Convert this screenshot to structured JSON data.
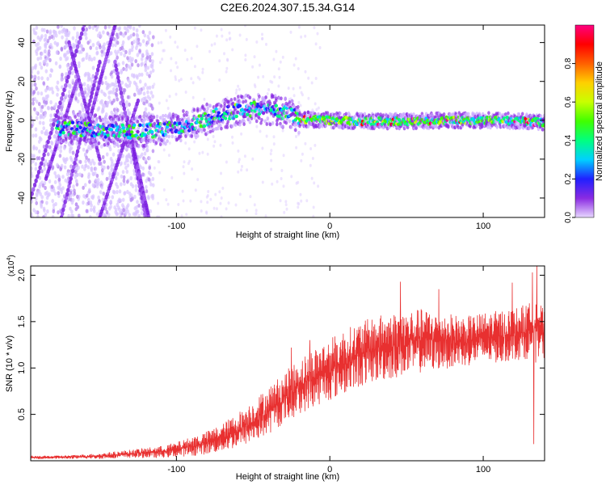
{
  "figure": {
    "title": "C2E6.2024.307.15.34.G14"
  },
  "chart_data": [
    {
      "type": "heatmap",
      "xlabel": "Height of straight line (km)",
      "ylabel": "Frequency (Hz)",
      "xlim": [
        -195,
        140
      ],
      "ylim": [
        -50,
        49
      ],
      "x_ticks": [
        -100,
        0,
        100
      ],
      "x_tick_labels": [
        "-100",
        "0",
        "100"
      ],
      "y_ticks": [
        -40,
        -20,
        0,
        20,
        40
      ],
      "y_tick_labels": [
        "-40",
        "-20",
        "0",
        "20",
        "40"
      ],
      "ridge": {
        "description": "Doppler ridge centre frequency vs height",
        "x": [
          -195,
          -170,
          -150,
          -130,
          -110,
          -90,
          -75,
          -60,
          -45,
          -35,
          -25,
          -20,
          0,
          20,
          50,
          80,
          110,
          140
        ],
        "y": [
          -4,
          -4,
          -5,
          -6,
          -5,
          -2,
          2,
          5,
          6,
          5,
          3,
          0.5,
          0,
          -0.5,
          -0.5,
          0,
          0,
          -1
        ]
      },
      "colorbar": {
        "label": "Normalized spectral amplitude",
        "range": [
          0,
          1
        ],
        "ticks": [
          0.0,
          0.2,
          0.4,
          0.6,
          0.8
        ],
        "tick_labels": [
          "0.0",
          "0.2",
          "0.4",
          "0.6",
          "0.8"
        ],
        "colors": [
          "#e8d8ff",
          "#8a2be2",
          "#2020ff",
          "#00d0ff",
          "#00ff80",
          "#40ff00",
          "#c8ff00",
          "#ffd000",
          "#ff6000",
          "#ff0000",
          "#ff0080"
        ]
      },
      "grid": false
    },
    {
      "type": "line",
      "xlabel": "Height of straight line (km)",
      "ylabel": "SNR (10 * v/v)",
      "y_multiplier_label": "(x10",
      "y_multiplier_exp": "4",
      "y_multiplier_close": ")",
      "xlim": [
        -195,
        140
      ],
      "ylim": [
        0,
        2.1
      ],
      "x_ticks": [
        -100,
        0,
        100
      ],
      "x_tick_labels": [
        "-100",
        "0",
        "100"
      ],
      "y_ticks": [
        0.5,
        1.0,
        1.5,
        2.0
      ],
      "y_tick_labels": [
        "0.5",
        "1.0",
        "1.5",
        "2.0"
      ],
      "series": [
        {
          "color": "#e83030",
          "envelope": {
            "x": [
              -195,
              -170,
              -150,
              -130,
              -110,
              -100,
              -90,
              -80,
              -70,
              -60,
              -50,
              -40,
              -30,
              -20,
              -10,
              0,
              10,
              20,
              30,
              40,
              50,
              60,
              70,
              80,
              90,
              100,
              110,
              120,
              130,
              135,
              140
            ],
            "low": [
              0.02,
              0.02,
              0.02,
              0.03,
              0.03,
              0.04,
              0.05,
              0.07,
              0.1,
              0.14,
              0.2,
              0.28,
              0.4,
              0.5,
              0.58,
              0.65,
              0.72,
              0.8,
              0.85,
              0.88,
              0.92,
              0.95,
              0.98,
              1.0,
              1.02,
              1.05,
              1.05,
              1.08,
              1.1,
              1.05,
              1.1
            ],
            "high": [
              0.05,
              0.06,
              0.08,
              0.12,
              0.16,
              0.2,
              0.26,
              0.32,
              0.4,
              0.52,
              0.65,
              0.8,
              0.95,
              1.1,
              1.22,
              1.32,
              1.42,
              1.5,
              1.56,
              1.6,
              1.62,
              1.64,
              1.62,
              1.58,
              1.56,
              1.6,
              1.62,
              1.65,
              1.7,
              1.8,
              1.6
            ]
          },
          "spikes": [
            {
              "x": 46,
              "y": 1.93
            },
            {
              "x": 71,
              "y": 1.85
            },
            {
              "x": 119,
              "y": 1.92
            },
            {
              "x": 135,
              "y": 2.1
            },
            {
              "x": 132,
              "y": 2.03
            },
            {
              "x": 133,
              "y": 0.18
            },
            {
              "x": -13,
              "y": 1.3
            },
            {
              "x": -25,
              "y": 1.22
            }
          ]
        }
      ],
      "grid": false
    }
  ]
}
